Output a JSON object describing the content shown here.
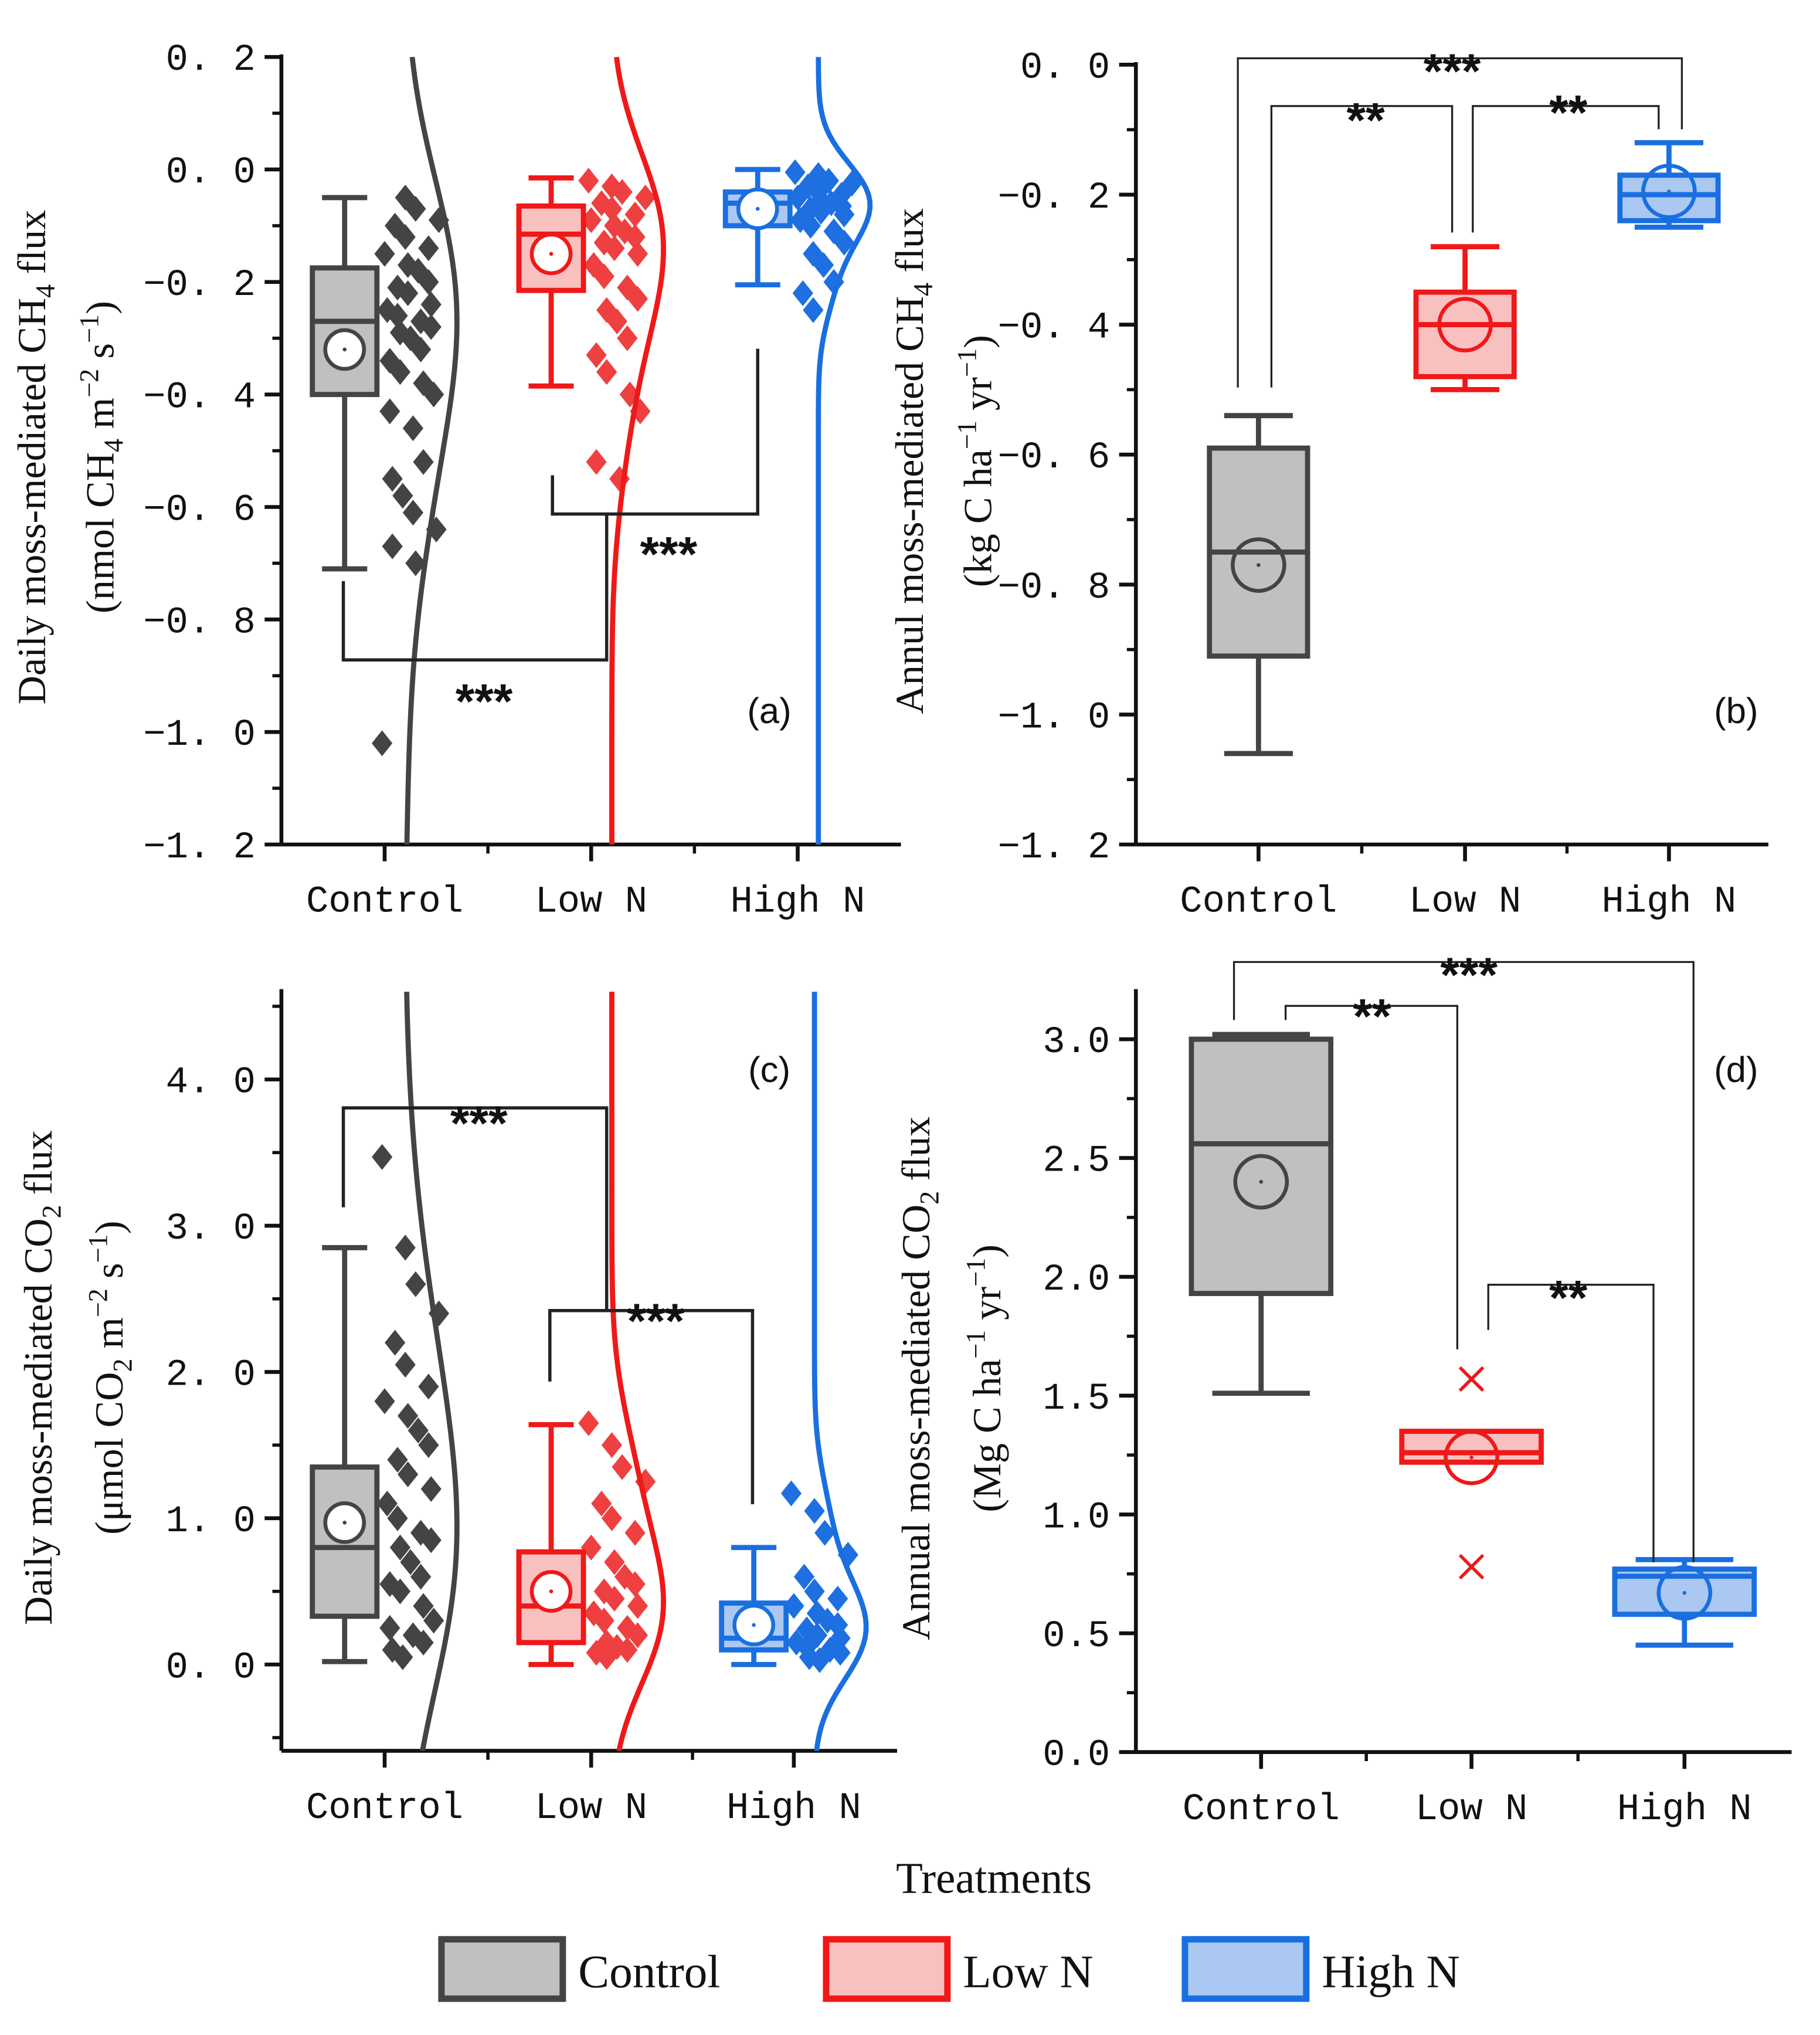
{
  "colors": {
    "Control": {
      "line": "#444444",
      "fill": "#c0c0c0",
      "pt": "#444444"
    },
    "Low N": {
      "line": "#f01818",
      "fill": "#f9c0c0",
      "pt": "#ee4040"
    },
    "High N": {
      "line": "#1a6fe0",
      "fill": "#aac8f2",
      "pt": "#1e6fe0"
    }
  },
  "xlabel": "Treatments",
  "legend": [
    "Control",
    "Low N",
    "High N"
  ],
  "chart_data": [
    {
      "id": "a",
      "type": "box",
      "panel_label": "(a)",
      "categories": [
        "Control",
        "Low N",
        "High N"
      ],
      "ylim": [
        -1.2,
        0.2
      ],
      "yticks": [
        0.2,
        0.0,
        -0.2,
        -0.4,
        -0.6,
        -0.8,
        -1.0,
        -1.2
      ],
      "ytick_labels": [
        "0. 2",
        "0. 0",
        "−0. 2",
        "−0. 4",
        "−0. 6",
        "−0. 8",
        "−1. 0",
        "−1. 2"
      ],
      "ylabel": [
        [
          {
            "t": "Daily moss-mediated CH"
          },
          {
            "t": "4",
            "s": "sub"
          },
          {
            "t": " flux"
          }
        ],
        [
          {
            "t": "(nmol CH"
          },
          {
            "t": "4",
            "s": "sub"
          },
          {
            "t": " m"
          },
          {
            "t": "−2",
            "s": "sup"
          },
          {
            "t": " s"
          },
          {
            "t": "−1",
            "s": "sup"
          },
          {
            "t": ")"
          }
        ]
      ],
      "boxes": [
        {
          "q1": -0.4,
          "q3": -0.175,
          "median": -0.27,
          "mean": -0.32,
          "wlo": -0.71,
          "whi": -0.05
        },
        {
          "q1": -0.215,
          "q3": -0.065,
          "median": -0.115,
          "mean": -0.15,
          "wlo": -0.385,
          "whi": -0.015
        },
        {
          "q1": -0.1,
          "q3": -0.04,
          "median": -0.06,
          "mean": -0.07,
          "wlo": -0.205,
          "whi": 0.0
        }
      ],
      "points": [
        [
          -1.02,
          -0.05,
          -0.07,
          -0.09,
          -0.1,
          -0.12,
          -0.14,
          -0.15,
          -0.17,
          -0.18,
          -0.2,
          -0.21,
          -0.22,
          -0.24,
          -0.25,
          -0.26,
          -0.27,
          -0.28,
          -0.29,
          -0.3,
          -0.32,
          -0.34,
          -0.36,
          -0.38,
          -0.4,
          -0.43,
          -0.46,
          -0.52,
          -0.55,
          -0.58,
          -0.61,
          -0.64,
          -0.67,
          -0.7
        ],
        [
          -0.02,
          -0.03,
          -0.04,
          -0.05,
          -0.06,
          -0.07,
          -0.08,
          -0.09,
          -0.1,
          -0.11,
          -0.12,
          -0.13,
          -0.14,
          -0.15,
          -0.17,
          -0.19,
          -0.21,
          -0.23,
          -0.25,
          -0.27,
          -0.3,
          -0.33,
          -0.36,
          -0.4,
          -0.43,
          -0.52,
          -0.55
        ],
        [
          -0.005,
          -0.01,
          -0.02,
          -0.025,
          -0.03,
          -0.04,
          -0.045,
          -0.05,
          -0.055,
          -0.06,
          -0.065,
          -0.07,
          -0.075,
          -0.08,
          -0.09,
          -0.1,
          -0.11,
          -0.13,
          -0.15,
          -0.17,
          -0.2,
          -0.22,
          -0.25
        ]
      ],
      "significance": [
        {
          "pair": [
            "Control",
            "Low N"
          ],
          "label": "***"
        },
        {
          "pair": [
            "Low N",
            "High N"
          ],
          "label": "***"
        }
      ]
    },
    {
      "id": "b",
      "type": "box",
      "panel_label": "(b)",
      "categories": [
        "Control",
        "Low N",
        "High N"
      ],
      "ylim": [
        -1.2,
        0.0
      ],
      "yticks": [
        0.0,
        -0.2,
        -0.4,
        -0.6,
        -0.8,
        -1.0,
        -1.2
      ],
      "ytick_labels": [
        "0. 0",
        "−0. 2",
        "−0. 4",
        "−0. 6",
        "−0. 8",
        "−1. 0",
        "−1. 2"
      ],
      "ylabel": [
        [
          {
            "t": "Annul moss-mediated CH"
          },
          {
            "t": "4",
            "s": "sub"
          },
          {
            "t": " flux"
          }
        ],
        [
          {
            "t": "(kg C ha"
          },
          {
            "t": "−1",
            "s": "sup"
          },
          {
            "t": " yr"
          },
          {
            "t": "−1",
            "s": "sup"
          },
          {
            "t": ")"
          }
        ]
      ],
      "boxes": [
        {
          "q1": -0.91,
          "q3": -0.59,
          "median": -0.75,
          "mean": -0.77,
          "wlo": -1.06,
          "whi": -0.54
        },
        {
          "q1": -0.48,
          "q3": -0.35,
          "median": -0.4,
          "mean": -0.4,
          "wlo": -0.5,
          "whi": -0.28
        },
        {
          "q1": -0.24,
          "q3": -0.17,
          "median": -0.2,
          "mean": -0.195,
          "wlo": -0.25,
          "whi": -0.12
        }
      ],
      "significance": [
        {
          "pair": [
            "Control",
            "High N"
          ],
          "label": "***"
        },
        {
          "pair": [
            "Control",
            "Low N"
          ],
          "label": "**"
        },
        {
          "pair": [
            "Low N",
            "High N"
          ],
          "label": "**"
        }
      ]
    },
    {
      "id": "c",
      "type": "box",
      "panel_label": "(c)",
      "categories": [
        "Control",
        "Low N",
        "High N"
      ],
      "ylim": [
        -0.59,
        4.6
      ],
      "yticks": [
        0.0,
        1.0,
        2.0,
        3.0,
        4.0
      ],
      "ytick_labels": [
        "0. 0",
        "1. 0",
        "2. 0",
        "3. 0",
        "4. 0"
      ],
      "ylabel": [
        [
          {
            "t": "Daily moss-mediated CO"
          },
          {
            "t": "2",
            "s": "sub"
          },
          {
            "t": " flux"
          }
        ],
        [
          {
            "t": "(μmol CO"
          },
          {
            "t": "2",
            "s": "sub"
          },
          {
            "t": " m"
          },
          {
            "t": "−2",
            "s": "sup"
          },
          {
            "t": " s"
          },
          {
            "t": "−1",
            "s": "sup"
          },
          {
            "t": ")"
          }
        ]
      ],
      "boxes": [
        {
          "q1": 0.33,
          "q3": 1.35,
          "median": 0.8,
          "mean": 0.97,
          "wlo": 0.02,
          "whi": 2.85
        },
        {
          "q1": 0.15,
          "q3": 0.77,
          "median": 0.4,
          "mean": 0.5,
          "wlo": 0.0,
          "whi": 1.64
        },
        {
          "q1": 0.1,
          "q3": 0.42,
          "median": 0.18,
          "mean": 0.27,
          "wlo": 0.0,
          "whi": 0.8
        }
      ],
      "points": [
        [
          3.47,
          2.85,
          2.6,
          2.4,
          2.2,
          2.05,
          1.9,
          1.8,
          1.7,
          1.6,
          1.5,
          1.4,
          1.3,
          1.2,
          1.1,
          1.0,
          0.9,
          0.85,
          0.8,
          0.7,
          0.6,
          0.55,
          0.5,
          0.4,
          0.3,
          0.25,
          0.2,
          0.15,
          0.1,
          0.05
        ],
        [
          1.65,
          1.5,
          1.35,
          1.25,
          1.1,
          1.0,
          0.9,
          0.8,
          0.7,
          0.6,
          0.55,
          0.5,
          0.45,
          0.4,
          0.35,
          0.3,
          0.25,
          0.2,
          0.15,
          0.12,
          0.1,
          0.08,
          0.05
        ],
        [
          1.17,
          1.05,
          0.9,
          0.75,
          0.6,
          0.5,
          0.45,
          0.4,
          0.35,
          0.3,
          0.27,
          0.24,
          0.2,
          0.18,
          0.15,
          0.12,
          0.1,
          0.08,
          0.05,
          0.03
        ]
      ],
      "significance": [
        {
          "pair": [
            "Control",
            "Low N"
          ],
          "label": "***"
        },
        {
          "pair": [
            "Low N",
            "High N"
          ],
          "label": "***"
        }
      ]
    },
    {
      "id": "d",
      "type": "box",
      "panel_label": "(d)",
      "categories": [
        "Control",
        "Low N",
        "High N"
      ],
      "ylim": [
        0.0,
        3.2
      ],
      "yticks": [
        0.0,
        0.5,
        1.0,
        1.5,
        2.0,
        2.5,
        3.0
      ],
      "ytick_labels": [
        "0.0",
        "0.5",
        "1.0",
        "1.5",
        "2.0",
        "2.5",
        "3.0"
      ],
      "ylabel": [
        [
          {
            "t": "Annual moss-mediated CO"
          },
          {
            "t": "2",
            "s": "sub"
          },
          {
            "t": " flux"
          }
        ],
        [
          {
            "t": "(Mg C ha"
          },
          {
            "t": "−1",
            "s": "sup"
          },
          {
            "t": " yr"
          },
          {
            "t": "−1",
            "s": "sup"
          },
          {
            "t": ")"
          }
        ]
      ],
      "boxes": [
        {
          "q1": 1.93,
          "q3": 3.0,
          "median": 2.56,
          "mean": 2.4,
          "wlo": 1.51,
          "whi": 3.02
        },
        {
          "q1": 1.22,
          "q3": 1.35,
          "median": 1.26,
          "mean": 1.24,
          "outliers": [
            1.57,
            0.78
          ]
        },
        {
          "q1": 0.58,
          "q3": 0.77,
          "median": 0.74,
          "mean": 0.67,
          "wlo": 0.45,
          "whi": 0.81
        }
      ],
      "significance": [
        {
          "pair": [
            "Control",
            "High N"
          ],
          "label": "***"
        },
        {
          "pair": [
            "Control",
            "Low N"
          ],
          "label": "**"
        },
        {
          "pair": [
            "Low N",
            "High N"
          ],
          "label": "**"
        }
      ]
    }
  ]
}
